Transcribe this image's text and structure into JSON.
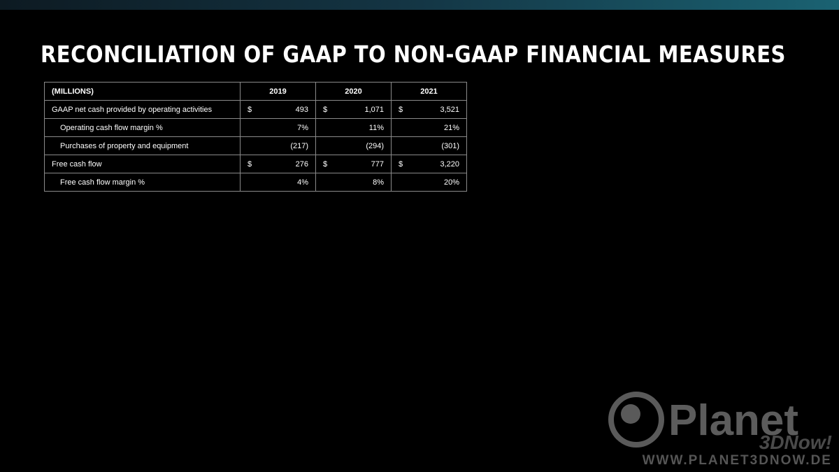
{
  "title": "RECONCILIATION OF GAAP TO NON-GAAP FINANCIAL MEASURES",
  "table": {
    "header": [
      "(MILLIONS)",
      "2019",
      "2020",
      "2021"
    ],
    "rows": [
      [
        "GAAP net cash provided by operating activities",
        "$",
        "493",
        "$",
        "1,071",
        "$",
        "3,521"
      ],
      [
        "Operating cash flow margin %",
        "7%",
        "11%",
        "21%"
      ],
      [
        "Purchases of property and equipment",
        "(217)",
        "(294)",
        "(301)"
      ],
      [
        "Free cash flow",
        "$",
        "276",
        "$",
        "777",
        "$",
        "3,220"
      ],
      [
        "Free cash flow margin %",
        "4%",
        "8%",
        "20%"
      ]
    ]
  },
  "watermark": {
    "brand": "Planet",
    "sub": "3DNow!",
    "url": "WWW.PLANET3DNOW.DE"
  }
}
